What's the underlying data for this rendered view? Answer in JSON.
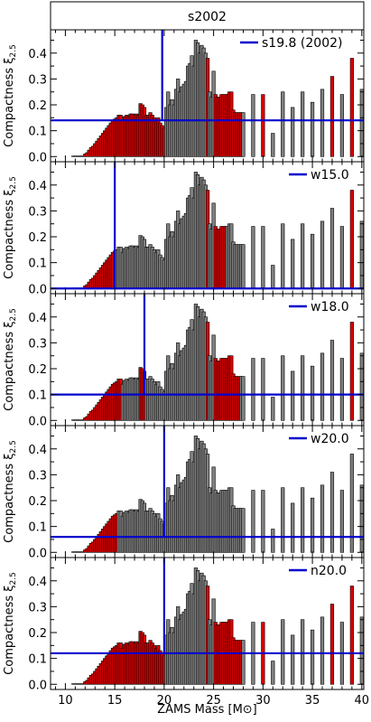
{
  "figure": {
    "title": "s2002",
    "xlabel": "ZAMS Mass [M⊙]"
  },
  "colors": {
    "exploding": "#dd0000",
    "black_hole": "#808080",
    "bar_edge": "#000000",
    "reference": "#0000cc"
  },
  "chart_data": [
    {
      "type": "bar",
      "panel": "s19.8",
      "legend": "s19.8 (2002)",
      "ylabel": "Compactness ξ2.5",
      "xlim": [
        8.5,
        40.2
      ],
      "ylim": [
        -0.02,
        0.49
      ],
      "xticks": [
        10,
        15,
        20,
        25,
        30,
        35,
        40
      ],
      "yticks": [
        0.0,
        0.1,
        0.2,
        0.3,
        0.4
      ],
      "reference_mass": 19.8,
      "reference_compactness": 0.14
    },
    {
      "type": "bar",
      "panel": "w15.0",
      "legend": "w15.0",
      "ylabel": "Compactness ξ2.5",
      "xlim": [
        8.5,
        40.2
      ],
      "ylim": [
        -0.02,
        0.49
      ],
      "xticks": [
        10,
        15,
        20,
        25,
        30,
        35,
        40
      ],
      "yticks": [
        0.0,
        0.1,
        0.2,
        0.3,
        0.4
      ],
      "reference_mass": 15.0,
      "reference_compactness": 0.0
    },
    {
      "type": "bar",
      "panel": "w18.0",
      "legend": "w18.0",
      "ylabel": "Compactness ξ2.5",
      "xlim": [
        8.5,
        40.2
      ],
      "ylim": [
        -0.02,
        0.49
      ],
      "xticks": [
        10,
        15,
        20,
        25,
        30,
        35,
        40
      ],
      "yticks": [
        0.0,
        0.1,
        0.2,
        0.3,
        0.4
      ],
      "reference_mass": 18.0,
      "reference_compactness": 0.1
    },
    {
      "type": "bar",
      "panel": "w20.0",
      "legend": "w20.0",
      "ylabel": "Compactness ξ2.5",
      "xlim": [
        8.5,
        40.2
      ],
      "ylim": [
        -0.02,
        0.49
      ],
      "xticks": [
        10,
        15,
        20,
        25,
        30,
        35,
        40
      ],
      "yticks": [
        0.0,
        0.1,
        0.2,
        0.3,
        0.4
      ],
      "reference_mass": 20.0,
      "reference_compactness": 0.06
    },
    {
      "type": "bar",
      "panel": "n20.0",
      "legend": "n20.0",
      "ylabel": "Compactness ξ2.5",
      "xlim": [
        8.5,
        40.2
      ],
      "ylim": [
        -0.02,
        0.49
      ],
      "xticks": [
        10,
        15,
        20,
        25,
        30,
        35,
        40
      ],
      "yticks": [
        0.0,
        0.1,
        0.2,
        0.3,
        0.4
      ],
      "reference_mass": 20.0,
      "reference_compactness": 0.12
    }
  ],
  "bars": {
    "masses": [
      10.8,
      11,
      11.2,
      11.4,
      11.6,
      11.8,
      12,
      12.2,
      12.4,
      12.6,
      12.8,
      13,
      13.2,
      13.4,
      13.6,
      13.8,
      14,
      14.2,
      14.4,
      14.6,
      14.8,
      15,
      15.2,
      15.4,
      15.6,
      15.8,
      16,
      16.2,
      16.4,
      16.6,
      16.8,
      17,
      17.2,
      17.4,
      17.6,
      17.8,
      18,
      18.2,
      18.4,
      18.6,
      18.8,
      19,
      19.2,
      19.4,
      19.6,
      19.8,
      20,
      20.2,
      20.4,
      20.6,
      20.8,
      21,
      21.2,
      21.4,
      21.6,
      21.8,
      22,
      22.2,
      22.4,
      22.6,
      22.8,
      23,
      23.2,
      23.4,
      23.6,
      23.8,
      24,
      24.2,
      24.4,
      24.6,
      24.8,
      25,
      25.2,
      25.4,
      25.6,
      25.8,
      26,
      26.2,
      26.4,
      26.6,
      26.8,
      27,
      27.2,
      27.4,
      27.6,
      27.8,
      28,
      29,
      30,
      31,
      32,
      33,
      34,
      35,
      36,
      37,
      38,
      39,
      40
    ],
    "compactness": [
      0.0,
      0.0,
      0.0,
      0.0,
      0.0,
      0.0,
      0.01,
      0.015,
      0.025,
      0.035,
      0.04,
      0.05,
      0.06,
      0.07,
      0.08,
      0.09,
      0.1,
      0.11,
      0.12,
      0.13,
      0.14,
      0.145,
      0.15,
      0.16,
      0.16,
      0.14,
      0.155,
      0.16,
      0.155,
      0.165,
      0.165,
      0.16,
      0.165,
      0.16,
      0.205,
      0.2,
      0.19,
      0.16,
      0.16,
      0.17,
      0.16,
      0.15,
      0.14,
      0.15,
      0.13,
      0.12,
      0.11,
      0.19,
      0.25,
      0.2,
      0.22,
      0.2,
      0.26,
      0.3,
      0.25,
      0.27,
      0.28,
      0.29,
      0.35,
      0.36,
      0.39,
      0.35,
      0.45,
      0.44,
      0.4,
      0.43,
      0.42,
      0.4,
      0.38,
      0.25,
      0.23,
      0.33,
      0.24,
      0.23,
      0.23,
      0.24,
      0.24,
      0.24,
      0.24,
      0.25,
      0.25,
      0.18,
      0.17,
      0.17,
      0.17,
      0.17,
      0.17,
      0.24,
      0.24,
      0.09,
      0.25,
      0.19,
      0.25,
      0.21,
      0.26,
      0.31,
      0.24,
      0.38,
      0.26
    ],
    "exploding": {
      "s19.8": [
        1,
        1,
        1,
        1,
        1,
        1,
        1,
        1,
        1,
        1,
        1,
        1,
        1,
        1,
        1,
        1,
        1,
        1,
        1,
        1,
        1,
        1,
        1,
        1,
        1,
        1,
        1,
        1,
        1,
        1,
        1,
        1,
        1,
        1,
        1,
        1,
        1,
        1,
        1,
        1,
        1,
        1,
        1,
        1,
        1,
        1,
        1,
        0,
        0,
        0,
        0,
        0,
        0,
        0,
        0,
        0,
        0,
        0,
        0,
        0,
        0,
        0,
        0,
        0,
        0,
        0,
        0,
        0,
        1,
        0,
        0,
        0,
        1,
        1,
        1,
        1,
        1,
        1,
        1,
        1,
        1,
        1,
        1,
        1,
        1,
        1,
        0,
        0,
        1,
        0,
        0,
        0,
        0,
        0,
        0,
        1,
        0,
        1
      ],
      "w15.0": [
        1,
        1,
        1,
        1,
        1,
        1,
        1,
        1,
        1,
        1,
        1,
        1,
        1,
        1,
        1,
        1,
        1,
        1,
        1,
        1,
        1,
        0,
        0,
        0,
        0,
        0,
        0,
        0,
        0,
        0,
        0,
        0,
        0,
        0,
        0,
        0,
        0,
        0,
        0,
        0,
        0,
        0,
        0,
        0,
        0,
        0,
        0,
        0,
        0,
        0,
        0,
        0,
        0,
        0,
        0,
        0,
        0,
        0,
        0,
        0,
        0,
        0,
        0,
        0,
        0,
        0,
        0,
        0,
        1,
        0,
        0,
        0,
        1,
        1,
        1,
        1,
        1,
        1,
        0,
        0,
        0,
        0,
        0,
        0,
        0,
        0,
        0,
        0,
        0,
        0,
        0,
        0,
        0,
        0,
        0,
        0,
        0,
        1
      ],
      "w18.0": [
        1,
        1,
        1,
        1,
        1,
        1,
        1,
        1,
        1,
        1,
        1,
        1,
        1,
        1,
        1,
        1,
        1,
        1,
        1,
        1,
        1,
        1,
        1,
        1,
        1,
        0,
        0,
        0,
        0,
        0,
        0,
        0,
        0,
        0,
        1,
        1,
        1,
        0,
        0,
        0,
        0,
        0,
        0,
        0,
        0,
        0,
        0,
        0,
        0,
        0,
        0,
        0,
        0,
        0,
        0,
        0,
        0,
        0,
        0,
        0,
        0,
        0,
        0,
        0,
        0,
        0,
        0,
        0,
        1,
        0,
        0,
        0,
        1,
        1,
        1,
        1,
        1,
        1,
        1,
        1,
        1,
        1,
        1,
        1,
        1,
        0,
        0,
        0,
        0,
        0,
        0,
        0,
        0,
        0,
        0,
        0,
        0,
        1
      ],
      "w20.0": [
        1,
        1,
        1,
        1,
        1,
        1,
        1,
        1,
        1,
        1,
        1,
        1,
        1,
        1,
        1,
        1,
        1,
        1,
        1,
        1,
        1,
        1,
        1,
        0,
        0,
        0,
        0,
        0,
        0,
        0,
        0,
        0,
        0,
        0,
        0,
        0,
        0,
        0,
        0,
        0,
        0,
        0,
        0,
        0,
        0,
        0,
        0,
        0,
        0,
        0,
        0,
        0,
        0,
        0,
        0,
        0,
        0,
        0,
        0,
        0,
        0,
        0,
        0,
        0,
        0,
        0,
        0,
        0,
        0,
        0,
        0,
        0,
        0,
        0,
        0,
        0,
        0,
        0,
        0,
        0,
        0,
        0,
        0,
        0,
        0,
        0,
        0,
        0,
        0,
        0,
        0,
        0,
        0,
        0,
        0,
        0,
        0,
        0
      ],
      "n20.0": [
        1,
        1,
        1,
        1,
        1,
        1,
        1,
        1,
        1,
        1,
        1,
        1,
        1,
        1,
        1,
        1,
        1,
        1,
        1,
        1,
        1,
        1,
        1,
        1,
        1,
        1,
        1,
        1,
        1,
        1,
        1,
        1,
        1,
        1,
        1,
        1,
        1,
        1,
        1,
        1,
        1,
        1,
        1,
        1,
        1,
        1,
        1,
        0,
        0,
        0,
        0,
        0,
        0,
        0,
        0,
        0,
        0,
        0,
        0,
        0,
        0,
        0,
        0,
        0,
        0,
        0,
        0,
        0,
        1,
        0,
        0,
        0,
        1,
        1,
        1,
        1,
        1,
        1,
        1,
        1,
        1,
        1,
        1,
        1,
        1,
        1,
        0,
        0,
        1,
        0,
        0,
        0,
        0,
        0,
        0,
        1,
        0,
        1
      ]
    }
  }
}
